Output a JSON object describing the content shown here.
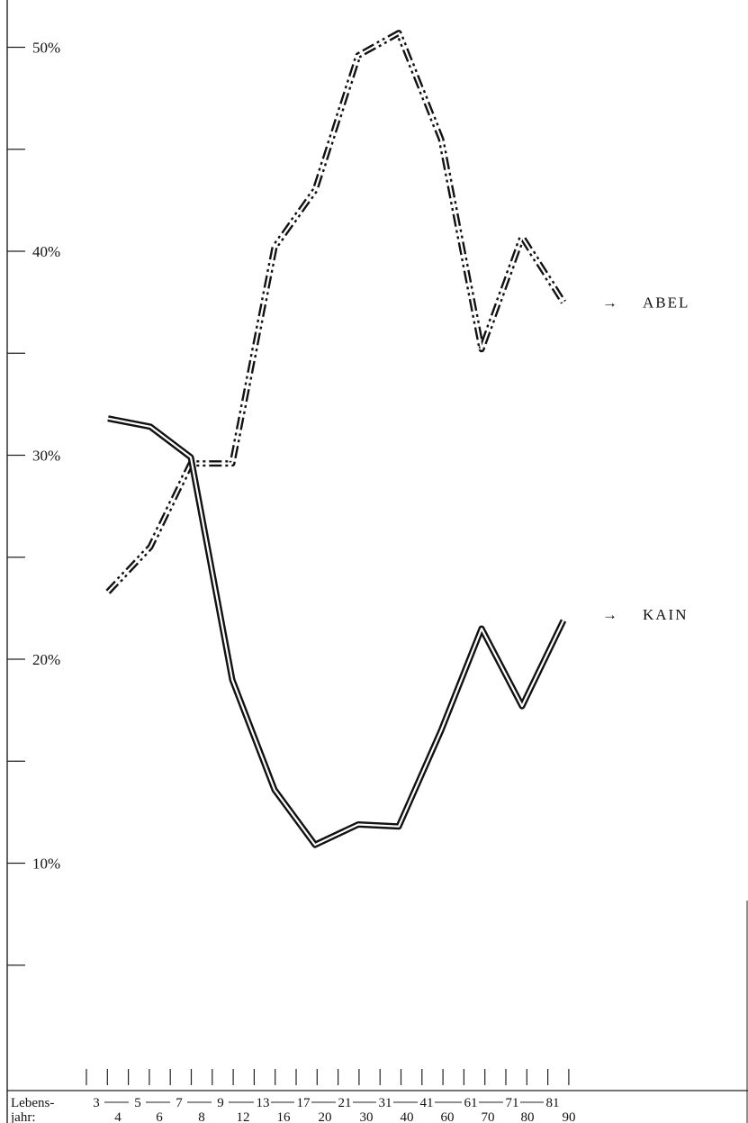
{
  "chart_data": {
    "type": "line",
    "title": "",
    "xlabel": "Lebens- jahr:",
    "ylabel": "",
    "ylim": [
      0,
      53
    ],
    "y_ticks": [
      5,
      10,
      15,
      20,
      25,
      30,
      35,
      40,
      45,
      50
    ],
    "y_tick_labels": [
      {
        "value": 10,
        "label": "10%"
      },
      {
        "value": 20,
        "label": "20%"
      },
      {
        "value": 30,
        "label": "30%"
      },
      {
        "value": 40,
        "label": "40%"
      },
      {
        "value": 50,
        "label": "50%"
      }
    ],
    "axis_label_line1": "Lebens-",
    "axis_label_line2": "jahr:",
    "x_label_top": [
      "3",
      "5",
      "7",
      "9",
      "13",
      "17",
      "21",
      "31",
      "41",
      "61",
      "71",
      "81"
    ],
    "x_label_bottom": [
      "4",
      "6",
      "8",
      "12",
      "16",
      "20",
      "30",
      "40",
      "60",
      "70",
      "80",
      "90"
    ],
    "x_tick_count": 24,
    "categories": [
      "3-4",
      "5-6",
      "7-8",
      "9-12",
      "13-16",
      "17-20",
      "21-30",
      "31-40",
      "41-60",
      "61-70",
      "71-80",
      "81-90"
    ],
    "series": [
      {
        "name": "ABEL",
        "style": "dash-dot double line",
        "points": [
          {
            "x": 3,
            "y": 23.3
          },
          {
            "x": 5,
            "y": 25.5
          },
          {
            "x": 7,
            "y": 29.6
          },
          {
            "x": 8,
            "y": 29.6
          },
          {
            "x": 9,
            "y": 29.6
          },
          {
            "x": 12,
            "y": 40.2
          },
          {
            "x": 16,
            "y": 43.0
          },
          {
            "x": 20,
            "y": 49.6
          },
          {
            "x": 30,
            "y": 50.7
          },
          {
            "x": 40,
            "y": 45.5
          },
          {
            "x": 60,
            "y": 35.2
          },
          {
            "x": 70,
            "y": 40.7
          },
          {
            "x": 80,
            "y": 37.5
          }
        ]
      },
      {
        "name": "KAIN",
        "style": "solid double line",
        "points": [
          {
            "x": 3,
            "y": 31.8
          },
          {
            "x": 5,
            "y": 31.4
          },
          {
            "x": 7,
            "y": 29.9
          },
          {
            "x": 9,
            "y": 19.0
          },
          {
            "x": 12,
            "y": 13.6
          },
          {
            "x": 16,
            "y": 10.9
          },
          {
            "x": 20,
            "y": 11.9
          },
          {
            "x": 30,
            "y": 11.8
          },
          {
            "x": 40,
            "y": 16.5
          },
          {
            "x": 60,
            "y": 21.5
          },
          {
            "x": 70,
            "y": 17.7
          },
          {
            "x": 80,
            "y": 21.9
          }
        ]
      }
    ],
    "series_labels": [
      {
        "arrow": "→",
        "text": "ABEL"
      },
      {
        "arrow": "→",
        "text": "KAIN"
      }
    ],
    "grid": false
  }
}
